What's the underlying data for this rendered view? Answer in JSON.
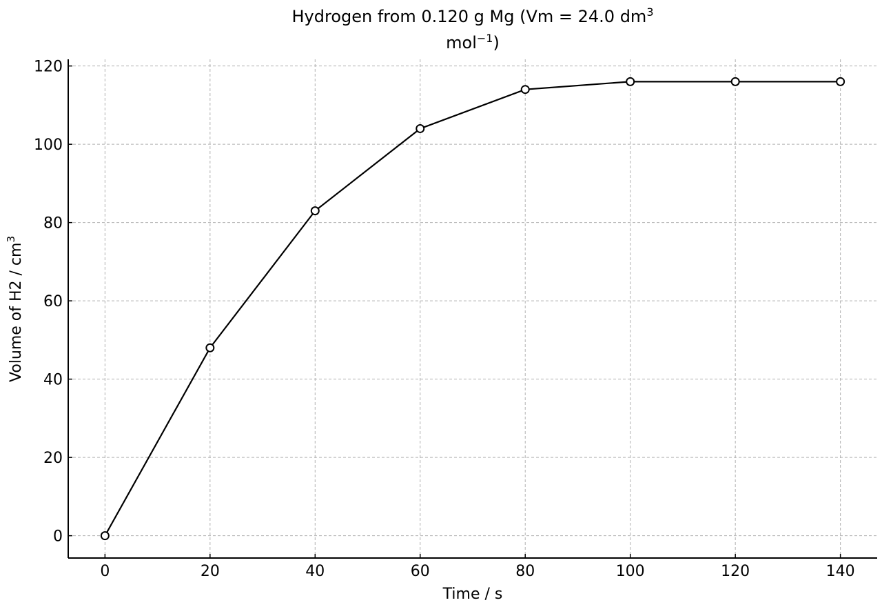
{
  "chart_data": {
    "type": "line",
    "title_line1": "Hydrogen from 0.120 g Mg (Vm = 24.0 dm",
    "title_line1_sup": "3",
    "title_line2": "mol",
    "title_line2_sup": "−1",
    "title_line2_end": ")",
    "xlabel": "Time / s",
    "ylabel_main": "Volume of H2 / cm",
    "ylabel_sup": "3",
    "x": [
      0,
      20,
      40,
      60,
      80,
      100,
      120,
      140
    ],
    "y": [
      0,
      48,
      83,
      104,
      114,
      116,
      116,
      116
    ],
    "xlim": [
      -7,
      147
    ],
    "ylim": [
      -5.7,
      121.7
    ],
    "xticks": [
      0,
      20,
      40,
      60,
      80,
      100,
      120,
      140
    ],
    "yticks": [
      0,
      20,
      40,
      60,
      80,
      100,
      120
    ],
    "grid": true,
    "marker": "open-circle",
    "line_color": "#000000",
    "marker_fill": "#ffffff",
    "grid_color": "#b0b0b0"
  }
}
